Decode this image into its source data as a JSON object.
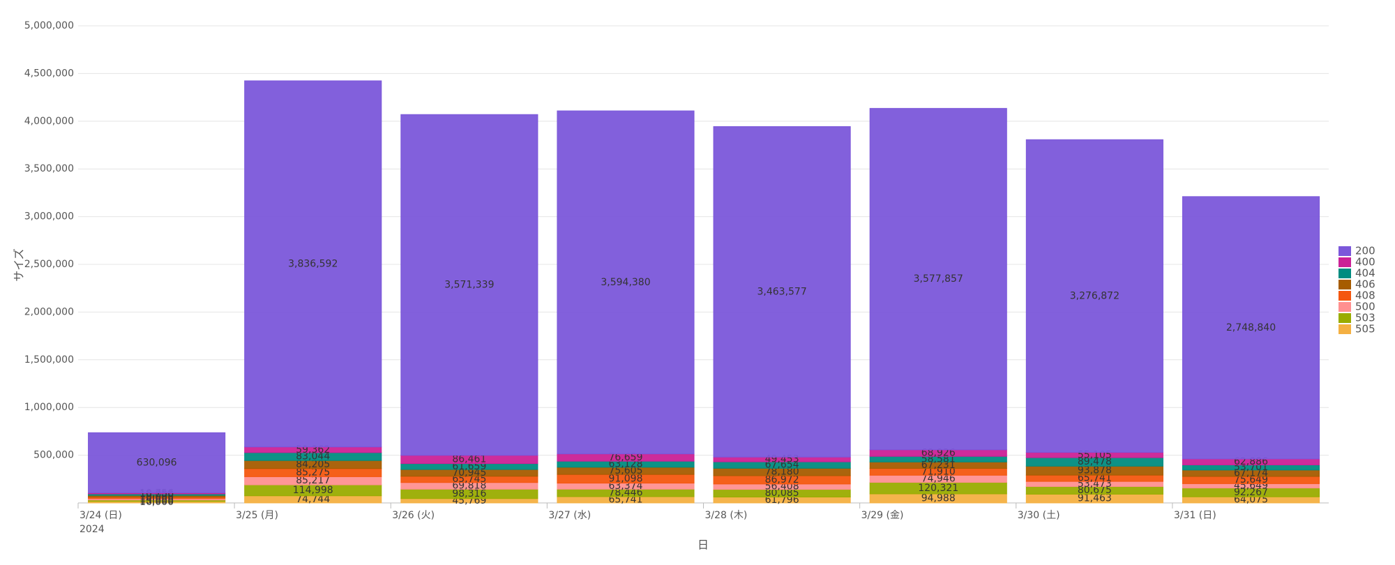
{
  "chart_data": {
    "type": "stacked_bar",
    "x_label": "日",
    "y_label": "サイズ",
    "year_label": "2024",
    "categories": [
      "3/24 (日)",
      "3/25 (月)",
      "3/26 (火)",
      "3/27 (水)",
      "3/28 (木)",
      "3/29 (金)",
      "3/30 (土)",
      "3/31 (日)"
    ],
    "ylim": [
      0,
      5000000
    ],
    "yticks": [
      {
        "value": 500000,
        "label": "500,000"
      },
      {
        "value": 1000000,
        "label": "1,000,000"
      },
      {
        "value": 1500000,
        "label": "1,500,000"
      },
      {
        "value": 2000000,
        "label": "2,000,000"
      },
      {
        "value": 2500000,
        "label": "2,500,000"
      },
      {
        "value": 3000000,
        "label": "3,000,000"
      },
      {
        "value": 3500000,
        "label": "3,500,000"
      },
      {
        "value": 4000000,
        "label": "4,000,000"
      },
      {
        "value": 4500000,
        "label": "4,500,000"
      },
      {
        "value": 5000000,
        "label": "5,000,000"
      }
    ],
    "grid": true,
    "legend": "right",
    "series": [
      {
        "name": "505",
        "color": "#f4b042",
        "values": [
          16000,
          74744,
          45769,
          65741,
          61796,
          94988,
          91463,
          64075
        ],
        "value_labels": [
          "16,000",
          "74,744",
          "45,769",
          "65,741",
          "61,796",
          "94,988",
          "91,463",
          "64,075"
        ]
      },
      {
        "name": "503",
        "color": "#9aac00",
        "values": [
          15000,
          114998,
          98316,
          78446,
          80085,
          120321,
          80675,
          92267
        ],
        "value_labels": [
          "15,000",
          "114,998",
          "98,316",
          "78,446",
          "80,085",
          "120,321",
          "80,675",
          "92,267"
        ]
      },
      {
        "name": "500",
        "color": "#ff9090",
        "values": [
          14000,
          85217,
          69818,
          63374,
          56408,
          74946,
          53473,
          45649
        ],
        "value_labels": [
          "14,000",
          "85,217",
          "69,818",
          "63,374",
          "56,408",
          "74,946",
          "53,473",
          "45,649"
        ]
      },
      {
        "name": "408",
        "color": "#f4570f",
        "values": [
          16000,
          85275,
          65745,
          91098,
          86972,
          71910,
          65741,
          75649
        ],
        "value_labels": [
          "16,000",
          "85,275",
          "65,745",
          "91,098",
          "86,972",
          "71,910",
          "65,741",
          "75,649"
        ]
      },
      {
        "name": "406",
        "color": "#a65c00",
        "values": [
          18000,
          84205,
          70945,
          75605,
          78180,
          67231,
          93878,
          67174
        ],
        "value_labels": [
          "18,000",
          "84,205",
          "70,945",
          "75,605",
          "78,180",
          "67,231",
          "93,878",
          "67,174"
        ]
      },
      {
        "name": "404",
        "color": "#008c80",
        "values": [
          16000,
          83044,
          61659,
          63128,
          67654,
          58581,
          89478,
          53701
        ],
        "value_labels": [
          "16,000",
          "83,044",
          "61,659",
          "63,128",
          "67,654",
          "58,581",
          "89,478",
          "53,701"
        ]
      },
      {
        "name": "400",
        "color": "#cb2196",
        "values": [
          10756,
          59362,
          86461,
          76659,
          49453,
          68926,
          55105,
          62886
        ],
        "value_labels": [
          "10,756",
          "59,362",
          "86,461",
          "76,659",
          "49,453",
          "68,926",
          "55,105",
          "62,886"
        ]
      },
      {
        "name": "200",
        "color": "#7b57da",
        "values": [
          630096,
          3836592,
          3571339,
          3594380,
          3463577,
          3577857,
          3276872,
          2748840
        ],
        "value_labels": [
          "630,096",
          "3,836,592",
          "3,571,339",
          "3,594,380",
          "3,463,577",
          "3,577,857",
          "3,276,872",
          "2,748,840"
        ]
      }
    ]
  }
}
